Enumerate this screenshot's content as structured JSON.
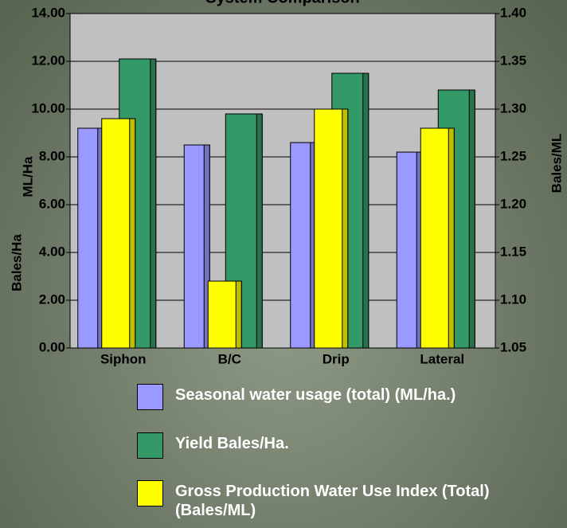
{
  "chart_data": {
    "type": "bar",
    "title": "System Comparison",
    "y_label_upper": "ML/Ha",
    "y_label_lower": "Bales/Ha",
    "y2_label": "Bales/ML",
    "categories": [
      "Siphon",
      "B/C",
      "Drip",
      "Lateral"
    ],
    "series": [
      {
        "name": "Seasonal water usage (total) (ML/ha.)",
        "color": "#9999ff",
        "values": [
          9.2,
          8.5,
          8.6,
          8.2
        ]
      },
      {
        "name": "Yield Bales/Ha.",
        "color": "#339966",
        "values": [
          12.1,
          9.8,
          11.5,
          10.8
        ]
      },
      {
        "name": "Gross Production Water Use Index (Total) (Bales/ML)",
        "color": "#ffff00",
        "axis": "y2",
        "values": [
          1.29,
          1.12,
          1.3,
          1.28
        ]
      }
    ],
    "ylim": [
      0,
      14
    ],
    "yticks": [
      {
        "value": 0,
        "label": "0.00"
      },
      {
        "value": 2,
        "label": "2.00"
      },
      {
        "value": 4,
        "label": "4.00"
      },
      {
        "value": 6,
        "label": "6.00"
      },
      {
        "value": 8,
        "label": "8.00"
      },
      {
        "value": 10,
        "label": "10.00"
      },
      {
        "value": 12,
        "label": "12.00"
      },
      {
        "value": 14,
        "label": "14.00"
      }
    ],
    "y2lim": [
      1.05,
      1.4
    ],
    "y2ticks": [
      {
        "value": 1.05,
        "label": "1.05"
      },
      {
        "value": 1.1,
        "label": "1.10"
      },
      {
        "value": 1.15,
        "label": "1.15"
      },
      {
        "value": 1.2,
        "label": "1.20"
      },
      {
        "value": 1.25,
        "label": "1.25"
      },
      {
        "value": 1.3,
        "label": "1.30"
      },
      {
        "value": 1.35,
        "label": "1.35"
      },
      {
        "value": 1.4,
        "label": "1.40"
      }
    ],
    "grid": true
  }
}
